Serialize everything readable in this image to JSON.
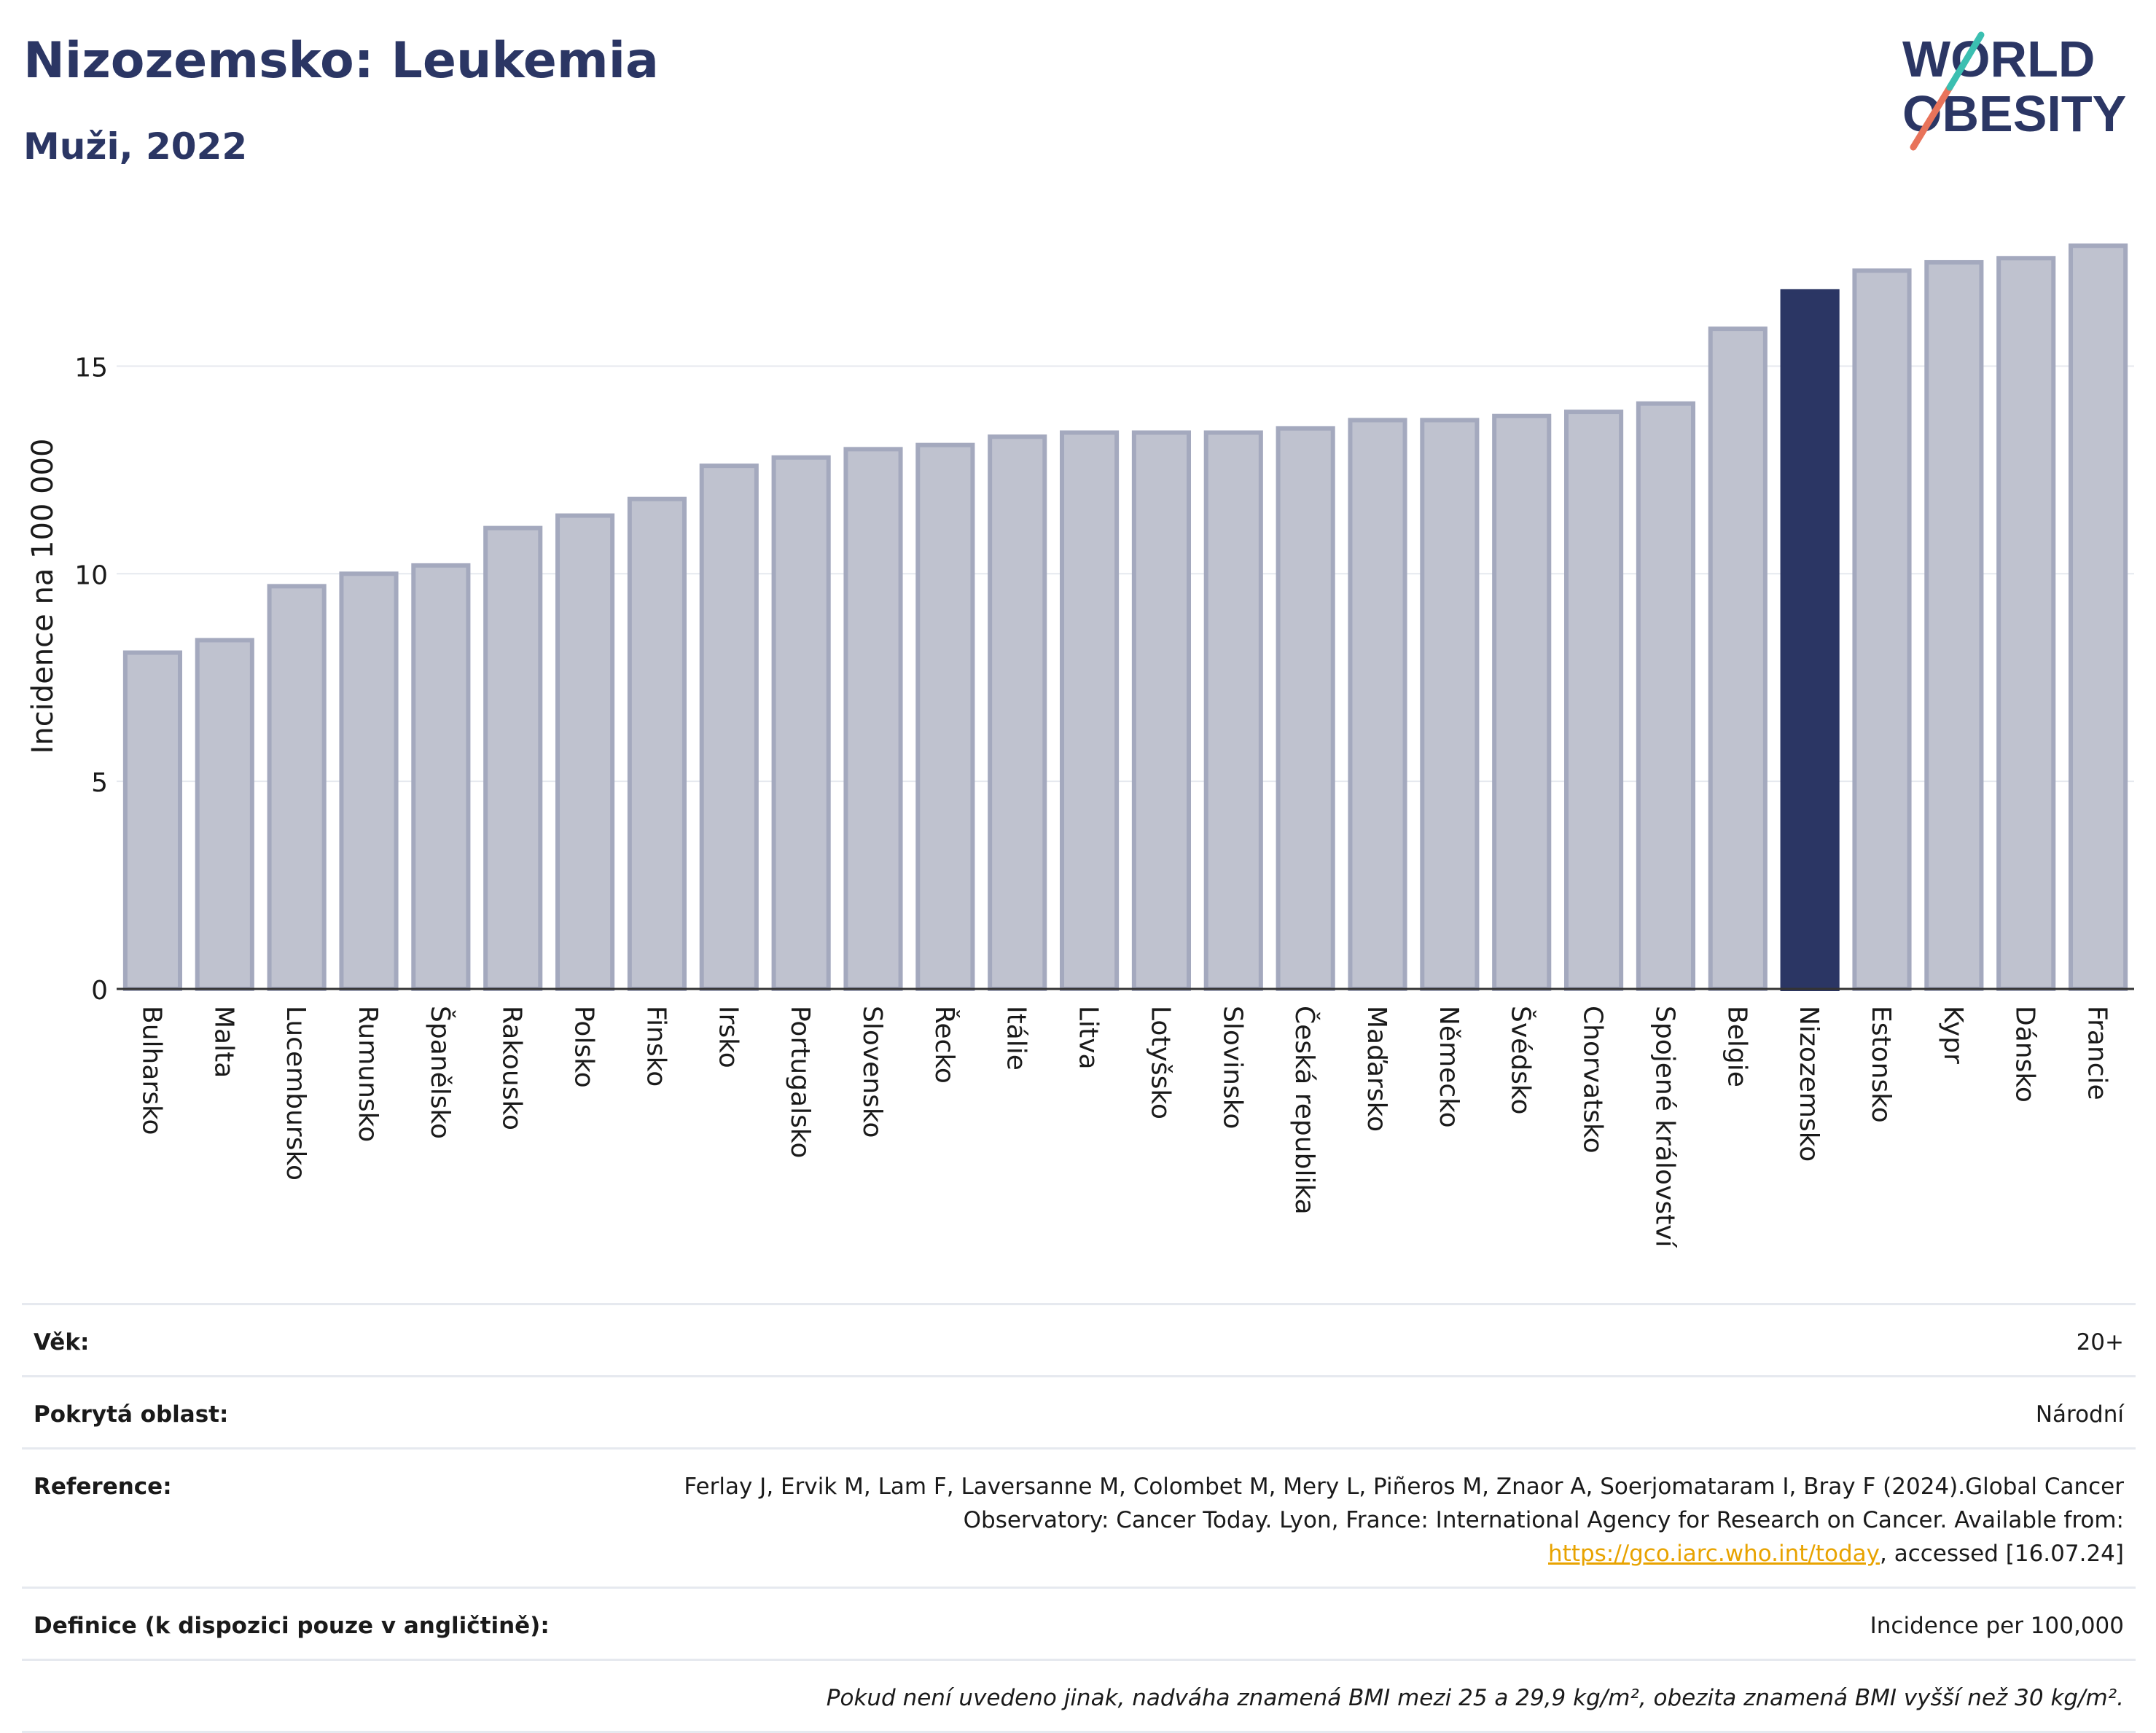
{
  "header": {
    "title": "Nizozemsko: Leukemia",
    "subtitle": "Muži, 2022",
    "logo_line1": "WORLD",
    "logo_line2": "OBESITY"
  },
  "chart_data": {
    "type": "bar",
    "title": "Nizozemsko: Leukemia",
    "subtitle": "Muži, 2022",
    "ylabel": "Incidence na 100 000",
    "xlabel": "",
    "ylim": [
      0,
      18.5
    ],
    "yticks": [
      0,
      5,
      10,
      15
    ],
    "grid": true,
    "highlight": "Nizozemsko",
    "categories": [
      "Bulharsko",
      "Malta",
      "Lucembursko",
      "Rumunsko",
      "Španělsko",
      "Rakousko",
      "Polsko",
      "Finsko",
      "Irsko",
      "Portugalsko",
      "Slovensko",
      "Řecko",
      "Itálie",
      "Litva",
      "Lotyšsko",
      "Slovinsko",
      "Česká republika",
      "Maďarsko",
      "Německo",
      "Švédsko",
      "Chorvatsko",
      "Spojené království",
      "Belgie",
      "Nizozemsko",
      "Estonsko",
      "Kypr",
      "Dánsko",
      "Francie"
    ],
    "values": [
      8.1,
      8.4,
      9.7,
      10.0,
      10.2,
      11.1,
      11.4,
      11.8,
      12.6,
      12.8,
      13.0,
      13.1,
      13.3,
      13.4,
      13.4,
      13.4,
      13.5,
      13.7,
      13.7,
      13.8,
      13.9,
      14.1,
      15.9,
      16.8,
      17.3,
      17.5,
      17.6,
      17.9
    ],
    "colors": {
      "bar": "#bfc2cf",
      "bar_border": "#a4a9be",
      "highlight": "#2b3664",
      "grid": "#e6e9ef",
      "axis": "#333333"
    }
  },
  "info": {
    "age_label": "Věk:",
    "age_value": "20+",
    "area_label": "Pokrytá oblast:",
    "area_value": "Národní",
    "ref_label": "Reference:",
    "ref_text_1": "Ferlay J, Ervik M, Lam F, Laversanne M, Colombet M, Mery L, Piñeros M, Znaor A, Soerjomataram I, Bray F (2024).Global Cancer Observatory: Cancer Today. Lyon, France: International Agency for Research on Cancer. Available from: ",
    "ref_link": "https://gco.iarc.who.int/today",
    "ref_text_2": ", accessed [16.07.24]",
    "def_label": "Definice (k dispozici pouze v angličtině):",
    "def_value": "Incidence per 100,000",
    "note": "Pokud není uvedeno jinak, nadváha znamená BMI mezi 25 a 29,9 kg/m², obezita znamená BMI vyšší než 30 kg/m²."
  }
}
